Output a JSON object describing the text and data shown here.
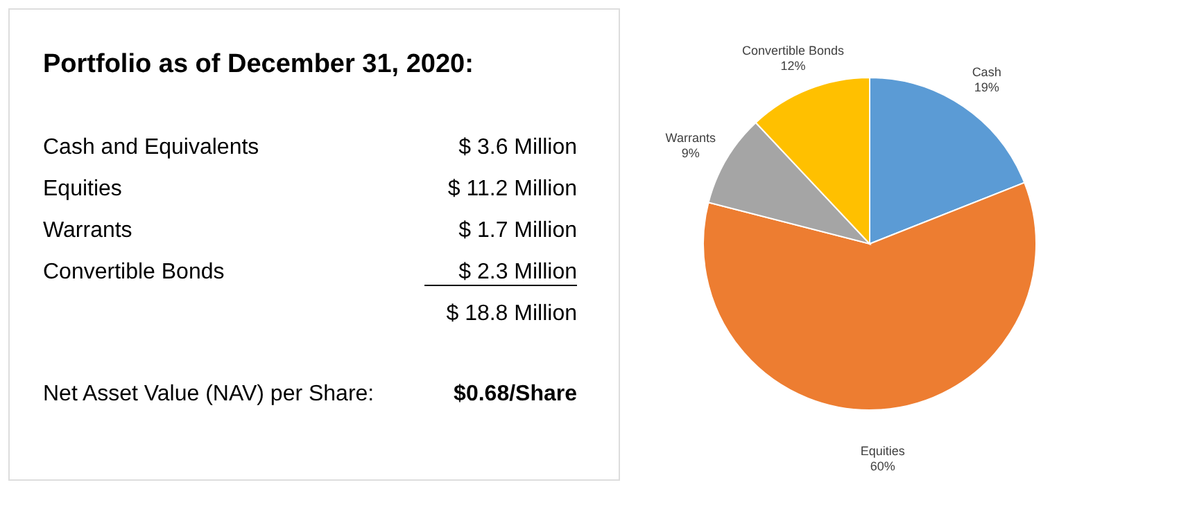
{
  "chart_data": [
    {
      "type": "other",
      "title": "Portfolio as of December 31, 2020:",
      "annotations": [
        "Cash and Equivalents",
        "$   3.6 Million",
        "Equities",
        "$ 11.2 Million",
        "Warrants",
        "$   1.7 Million",
        "Convertible Bonds",
        "$   2.3 Million",
        "$ 18.8 Million",
        "Net Asset Value (NAV) per Share:",
        "$0.68/Share"
      ]
    },
    {
      "type": "pie",
      "categories": [
        "Cash",
        "Equities",
        "Warrants",
        "Convertible Bonds"
      ],
      "values": [
        19,
        60,
        9,
        12
      ],
      "value_labels": [
        "19%",
        "60%",
        "9%",
        "12%"
      ],
      "colors": [
        "#5b9bd5",
        "#ed7d31",
        "#a5a5a5",
        "#ffc000"
      ],
      "legend": false
    }
  ]
}
